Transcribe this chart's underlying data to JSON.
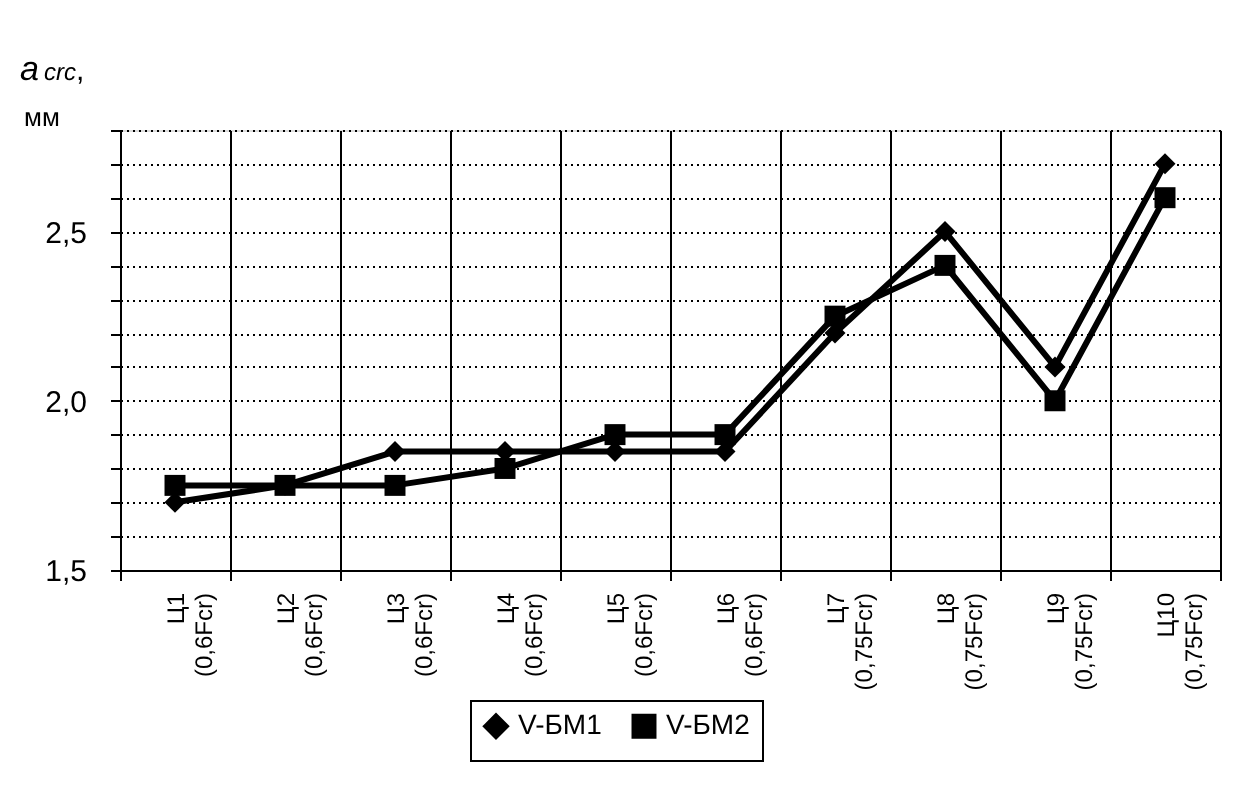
{
  "chart_data": {
    "type": "line",
    "ylabel": "a$_{crc}$, мм",
    "categories": [
      "Ц1 (0,6Fcr)",
      "Ц2 (0,6Fcr)",
      "Ц3 (0,6Fcr)",
      "Ц4 (0,6Fcr)",
      "Ц5 (0,6Fcr)",
      "Ц6 (0,6Fcr)",
      "Ц7 (0,75Fcr)",
      "Ц8 (0,75Fcr)",
      "Ц9 (0,75Fcr)",
      "Ц10 (0,75Fcr)"
    ],
    "series": [
      {
        "name": "V-БМ1",
        "color": "#000000",
        "marker": "diamond",
        "values": [
          1.7,
          1.75,
          1.85,
          1.85,
          1.85,
          1.85,
          2.2,
          2.5,
          2.1,
          2.7
        ]
      },
      {
        "name": "V-БМ2",
        "color": "#000000",
        "marker": "square",
        "values": [
          1.75,
          1.75,
          1.75,
          1.8,
          1.9,
          1.9,
          2.25,
          2.4,
          2.0,
          2.6
        ]
      }
    ],
    "ylim": [
      1.5,
      2.8
    ],
    "yticks": [
      {
        "value": 1.5,
        "label": "1,5"
      },
      {
        "value": 1.6,
        "label": null
      },
      {
        "value": 1.7,
        "label": null
      },
      {
        "value": 1.8,
        "label": null
      },
      {
        "value": 1.9,
        "label": null
      },
      {
        "value": 2.0,
        "label": "2,0"
      },
      {
        "value": 2.1,
        "label": null
      },
      {
        "value": 2.2,
        "label": null
      },
      {
        "value": 2.3,
        "label": null
      },
      {
        "value": 2.4,
        "label": null
      },
      {
        "value": 2.5,
        "label": "2,5"
      },
      {
        "value": 2.6,
        "label": null
      },
      {
        "value": 2.7,
        "label": null
      },
      {
        "value": 2.8,
        "label": null
      }
    ],
    "grid": true,
    "legend": "bottom",
    "line_style": "solid"
  }
}
